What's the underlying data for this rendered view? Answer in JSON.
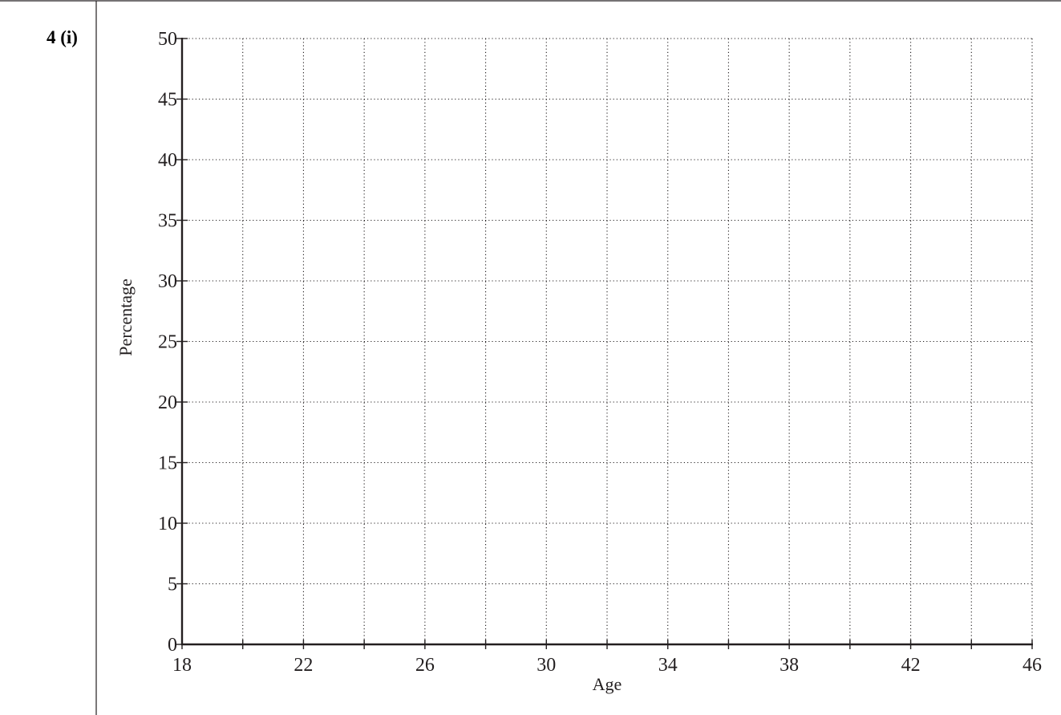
{
  "question_label": "4 (i)",
  "chart_data": {
    "type": "scatter",
    "title": "",
    "xlabel": "Age",
    "ylabel": "Percentage",
    "xlim": [
      18,
      46
    ],
    "ylim": [
      0,
      50
    ],
    "x_tick_labels": [
      18,
      22,
      26,
      30,
      34,
      38,
      42,
      46
    ],
    "x_minor_ticks": [
      20,
      24,
      28,
      32,
      36,
      40,
      44
    ],
    "y_tick_labels": [
      0,
      5,
      10,
      15,
      20,
      25,
      30,
      35,
      40,
      45,
      50
    ],
    "grid": true,
    "grid_style": "dotted",
    "series": []
  }
}
